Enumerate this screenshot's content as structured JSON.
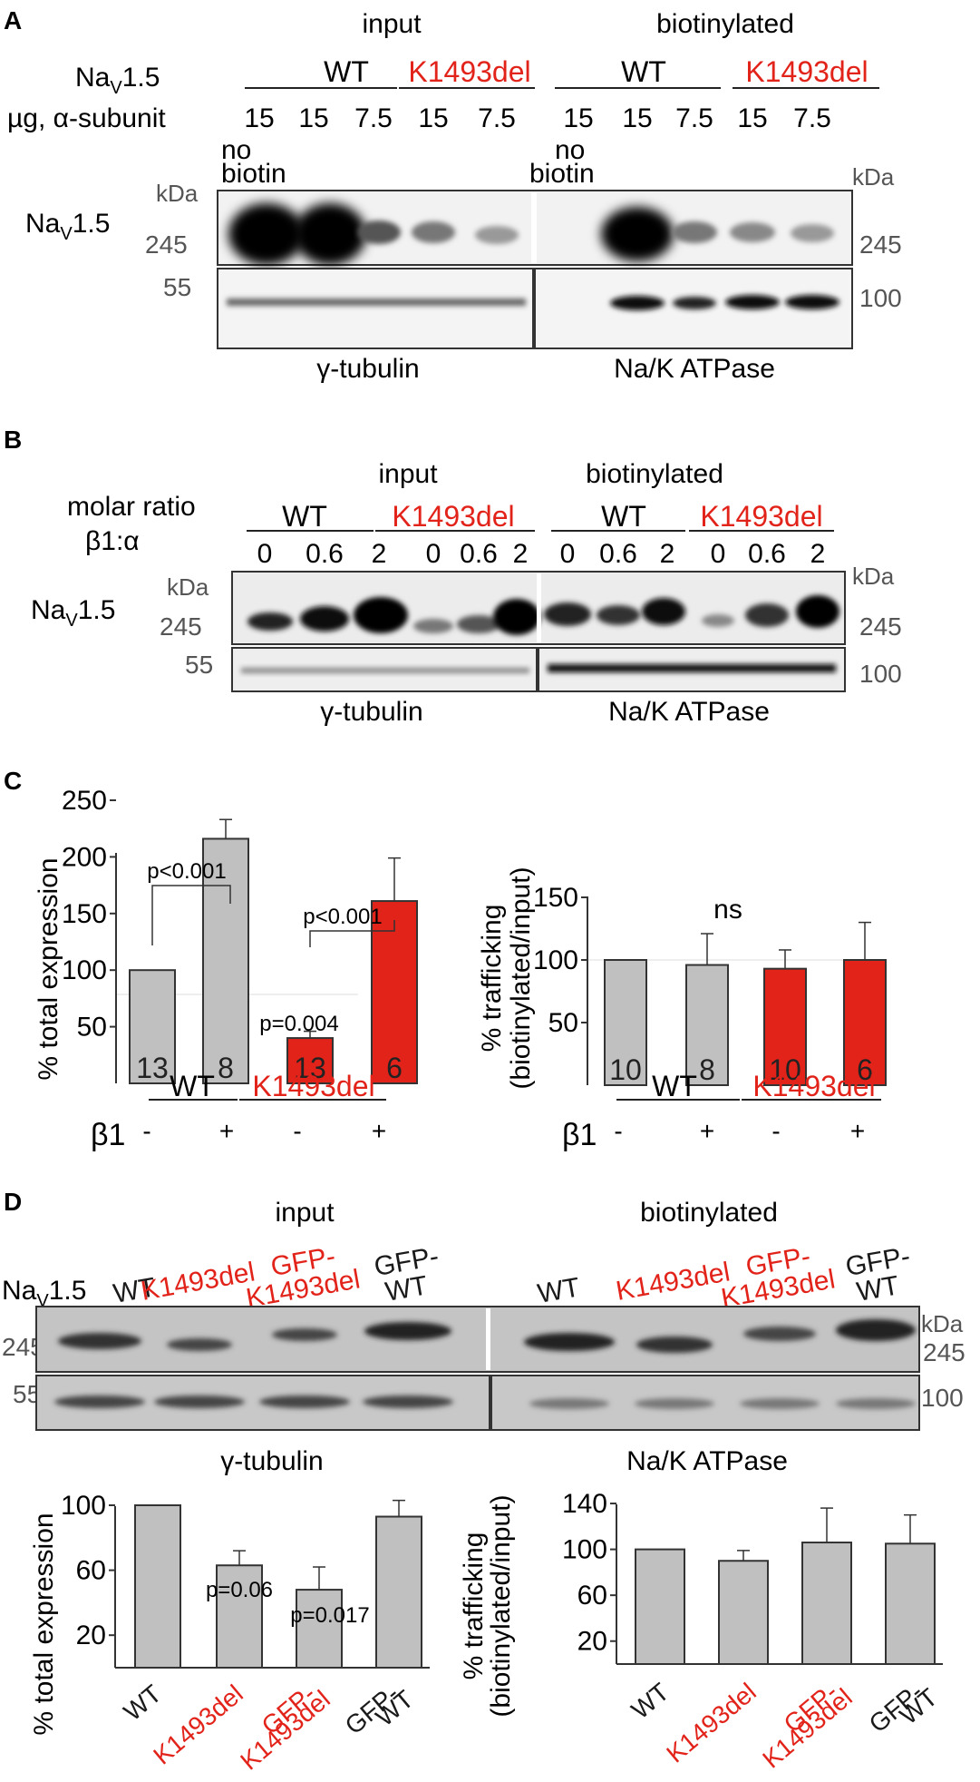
{
  "panel_a": {
    "letter": "A",
    "header_input": "input",
    "header_biotinylated": "biotinylated",
    "row_label_nav": "NaV1.5",
    "row_label_ug": "µg, α-subunit",
    "input_groups": [
      "WT",
      "K1493del"
    ],
    "bio_groups": [
      "WT",
      "K1493del"
    ],
    "input_amounts": [
      "15",
      "15",
      "7.5",
      "15",
      "7.5"
    ],
    "bio_amounts": [
      "15",
      "15",
      "7.5",
      "15",
      "7.5"
    ],
    "no_biotin": [
      "no",
      "biotin"
    ],
    "kda": "kDa",
    "mw_245": "245",
    "mw_55": "55",
    "mw_100": "100",
    "blot_label": "NaV1.5",
    "loading_input": "γ-tubulin",
    "loading_bio": "Na/K ATPase"
  },
  "panel_b": {
    "letter": "B",
    "header_input": "input",
    "header_biotinylated": "biotinylated",
    "ratio_label_1": "molar ratio",
    "ratio_label_2": "β1:α",
    "groups": [
      "WT",
      "K1493del",
      "WT",
      "K1493del"
    ],
    "ratios": [
      "0",
      "0.6",
      "2",
      "0",
      "0.6",
      "2",
      "0",
      "0.6",
      "2",
      "0",
      "0.6",
      "2"
    ],
    "kda": "kDa",
    "mw_245": "245",
    "mw_55": "55",
    "mw_100": "100",
    "blot_label": "NaV1.5",
    "loading_input": "γ-tubulin",
    "loading_bio": "Na/K ATPase"
  },
  "panel_c": {
    "letter": "C",
    "group_wt": "WT",
    "group_mut": "K1493del",
    "beta_label": "β1",
    "beta_signs": [
      "-",
      "+",
      "-",
      "+"
    ],
    "significance_ns": "ns"
  },
  "panel_d": {
    "letter": "D",
    "header_input": "input",
    "header_biotinylated": "biotinylated",
    "blot_label": "NaV1.5",
    "kda": "kDa",
    "mw_245": "245",
    "mw_55": "55",
    "mw_100": "100",
    "lane_labels_input": [
      [
        "WT"
      ],
      [
        "K1493del"
      ],
      [
        "GFP-",
        "K1493del"
      ],
      [
        "GFP-",
        "WT"
      ]
    ],
    "lane_labels_bio": [
      [
        "WT"
      ],
      [
        "K1493del"
      ],
      [
        "GFP-",
        "K1493del"
      ],
      [
        "GFP-",
        "WT"
      ]
    ],
    "loading_input": "γ-tubulin",
    "loading_bio": "Na/K ATPase",
    "x_labels": [
      [
        "WT"
      ],
      [
        "K1493del"
      ],
      [
        "GFP-",
        "K1493del"
      ],
      [
        "GFP-",
        "WT"
      ]
    ]
  },
  "colors": {
    "wt": "#c0c0c0",
    "mutant": "#e2231a",
    "mutant_text": "#e2231a",
    "blot_band": "#111111"
  },
  "chart_data": [
    {
      "type": "bar",
      "panel": "C-left",
      "ylabel": "% total expression",
      "ylim": [
        0,
        260
      ],
      "yticks": [
        50,
        100,
        150,
        200,
        250
      ],
      "categories": [
        "WT β1-",
        "WT β1+",
        "K1493del β1-",
        "K1493del β1+"
      ],
      "values": [
        100,
        216,
        40,
        161
      ],
      "errors": [
        0,
        17,
        6,
        38
      ],
      "n": [
        "13",
        "8",
        "13",
        "6"
      ],
      "bar_colors": [
        "#c0c0c0",
        "#c0c0c0",
        "#e2231a",
        "#e2231a"
      ],
      "annotations": [
        "p<0.001",
        "p<0.001",
        "p=0.004"
      ],
      "reference_line": 100
    },
    {
      "type": "bar",
      "panel": "C-right",
      "ylabel": "% trafficking (biotinylated/input)",
      "ylim": [
        0,
        160
      ],
      "yticks": [
        50,
        100,
        150
      ],
      "categories": [
        "WT β1-",
        "WT β1+",
        "K1493del β1-",
        "K1493del β1+"
      ],
      "values": [
        100,
        96,
        93,
        100
      ],
      "errors": [
        0,
        25,
        15,
        30
      ],
      "n": [
        "10",
        "8",
        "10",
        "6"
      ],
      "bar_colors": [
        "#c0c0c0",
        "#c0c0c0",
        "#e2231a",
        "#e2231a"
      ],
      "reference_line": 100
    },
    {
      "type": "bar",
      "panel": "D-left",
      "ylabel": "% total expression",
      "ylim": [
        0,
        110
      ],
      "yticks": [
        20,
        60,
        100
      ],
      "categories": [
        "WT",
        "K1493del",
        "GFP-K1493del",
        "GFP-WT"
      ],
      "values": [
        100,
        63,
        48,
        93
      ],
      "errors": [
        0,
        9,
        14,
        10
      ],
      "annotations": [
        "p=0.06",
        "p=0.017"
      ],
      "bar_colors": [
        "#c0c0c0",
        "#c0c0c0",
        "#c0c0c0",
        "#c0c0c0"
      ]
    },
    {
      "type": "bar",
      "panel": "D-right",
      "ylabel": "% trafficking (biotinylated/input)",
      "ylim": [
        0,
        150
      ],
      "yticks": [
        20,
        60,
        100,
        140
      ],
      "categories": [
        "WT",
        "K1493del",
        "GFP-K1493del",
        "GFP-WT"
      ],
      "values": [
        100,
        90,
        106,
        105
      ],
      "errors": [
        0,
        9,
        30,
        25
      ],
      "bar_colors": [
        "#c0c0c0",
        "#c0c0c0",
        "#c0c0c0",
        "#c0c0c0"
      ]
    }
  ]
}
